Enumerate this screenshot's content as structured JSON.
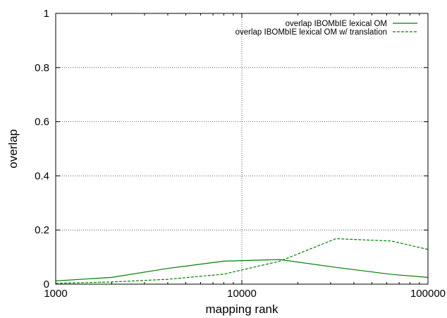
{
  "chart_data": {
    "type": "line",
    "xlabel": "mapping rank",
    "ylabel": "overlap",
    "xscale": "log",
    "xlim": [
      1000,
      100000
    ],
    "ylim": [
      0,
      1
    ],
    "xticks": [
      1000,
      10000,
      100000
    ],
    "xtick_labels": [
      "1000",
      "10000",
      "100000"
    ],
    "yticks": [
      0,
      0.2,
      0.4,
      0.6,
      0.8,
      1
    ],
    "ytick_labels": [
      "0",
      "0.2",
      "0.4",
      "0.6",
      "0.8",
      "1"
    ],
    "grid": true,
    "legend_position": "top-right",
    "series": [
      {
        "name": "overlap IBOMbIE  lexical OM",
        "color": "#008000",
        "style": "solid",
        "x": [
          1000,
          2000,
          4000,
          8000,
          16000,
          32000,
          64000,
          100000
        ],
        "y": [
          0.012,
          0.025,
          0.058,
          0.085,
          0.091,
          0.062,
          0.036,
          0.025
        ]
      },
      {
        "name": "overlap IBOMbIE  lexical OM w/ translation",
        "color": "#008000",
        "style": "dashed",
        "x": [
          1000,
          2000,
          4000,
          8000,
          16000,
          32000,
          64000,
          100000
        ],
        "y": [
          0.003,
          0.008,
          0.018,
          0.037,
          0.085,
          0.168,
          0.159,
          0.128
        ]
      }
    ]
  }
}
